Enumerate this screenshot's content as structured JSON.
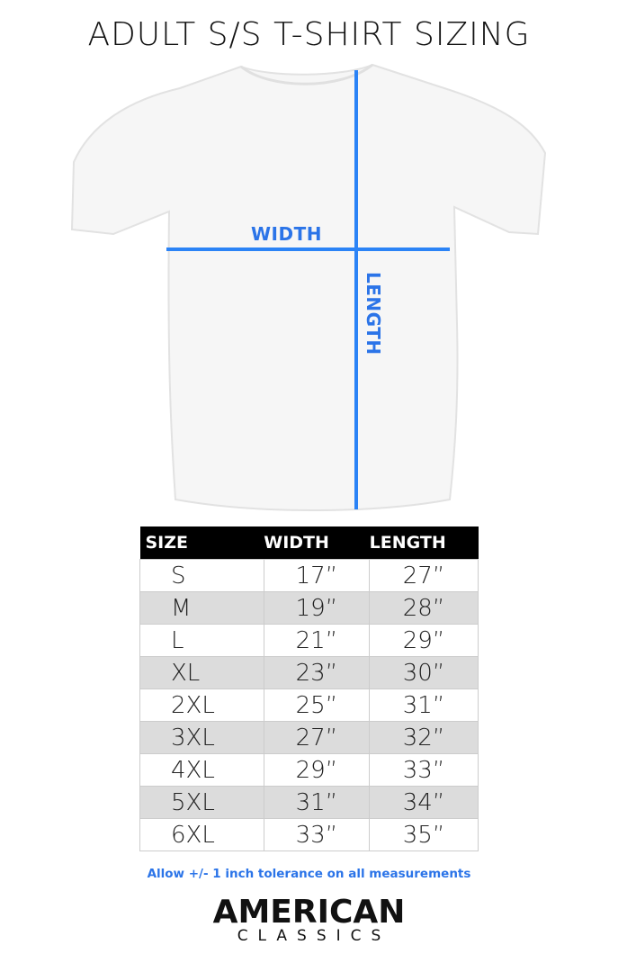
{
  "title": "ADULT S/S T-SHIRT SIZING",
  "diagram": {
    "width_label": "WIDTH",
    "length_label": "LENGTH",
    "line_color": "#2b83f6"
  },
  "table": {
    "headers": [
      "SIZE",
      "WIDTH",
      "LENGTH"
    ],
    "rows": [
      [
        "S",
        "17”",
        "27”"
      ],
      [
        "M",
        "19”",
        "28”"
      ],
      [
        "L",
        "21”",
        "29”"
      ],
      [
        "XL",
        "23”",
        "30”"
      ],
      [
        "2XL",
        "25”",
        "31”"
      ],
      [
        "3XL",
        "27”",
        "32”"
      ],
      [
        "4XL",
        "29”",
        "33”"
      ],
      [
        "5XL",
        "31”",
        "34”"
      ],
      [
        "6XL",
        "33”",
        "35”"
      ]
    ]
  },
  "note": "Allow +/- 1 inch tolerance on all measurements",
  "logo": {
    "line1": "AMERICAN",
    "line2": "CLASSICS"
  }
}
